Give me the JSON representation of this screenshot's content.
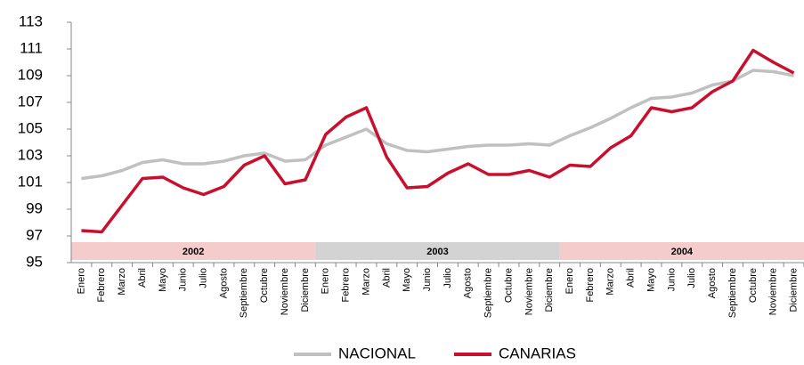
{
  "chart_data": {
    "type": "line",
    "categories": [
      "Enero",
      "Febrero",
      "Marzo",
      "Abril",
      "Mayo",
      "Junio",
      "Julio",
      "Agosto",
      "Septiembre",
      "Octubre",
      "Noviembre",
      "Diciembre",
      "Enero",
      "Febrero",
      "Marzo",
      "Abril",
      "Mayo",
      "Junio",
      "Julio",
      "Agosto",
      "Septiembre",
      "Octubre",
      "Noviembre",
      "Diciembre",
      "Enero",
      "Febrero",
      "Marzo",
      "Abril",
      "Mayo",
      "Junio",
      "Julio",
      "Agosto",
      "Septiembre",
      "Octubre",
      "Noviembre",
      "Diciembre"
    ],
    "years": [
      {
        "label": "2002",
        "color": "#f4cccc"
      },
      {
        "label": "2003",
        "color": "#d3d3d3"
      },
      {
        "label": "2004",
        "color": "#f4cccc"
      }
    ],
    "series": [
      {
        "name": "NACIONAL",
        "color": "#c0c0c0",
        "values": [
          101.3,
          101.5,
          101.9,
          102.5,
          102.7,
          102.4,
          102.4,
          102.6,
          103.0,
          103.2,
          102.6,
          102.7,
          103.8,
          104.4,
          105.0,
          103.9,
          103.4,
          103.3,
          103.5,
          103.7,
          103.8,
          103.8,
          103.9,
          103.8,
          104.5,
          105.1,
          105.8,
          106.6,
          107.3,
          107.4,
          107.7,
          108.3,
          108.6,
          109.4,
          109.3,
          109.0
        ]
      },
      {
        "name": "CANARIAS",
        "color": "#c8102e",
        "values": [
          97.4,
          97.3,
          99.3,
          101.3,
          101.4,
          100.6,
          100.1,
          100.7,
          102.3,
          103.0,
          100.9,
          101.2,
          104.6,
          105.9,
          106.6,
          102.9,
          100.6,
          100.7,
          101.7,
          102.4,
          101.6,
          101.6,
          101.9,
          101.4,
          102.3,
          102.2,
          103.6,
          104.5,
          106.6,
          106.3,
          106.6,
          107.8,
          108.6,
          110.9,
          110.0,
          109.2
        ]
      }
    ],
    "ylim": [
      95,
      113
    ],
    "yticks": [
      95,
      97,
      99,
      101,
      103,
      105,
      107,
      109,
      111,
      113
    ],
    "legend": "bottom"
  }
}
